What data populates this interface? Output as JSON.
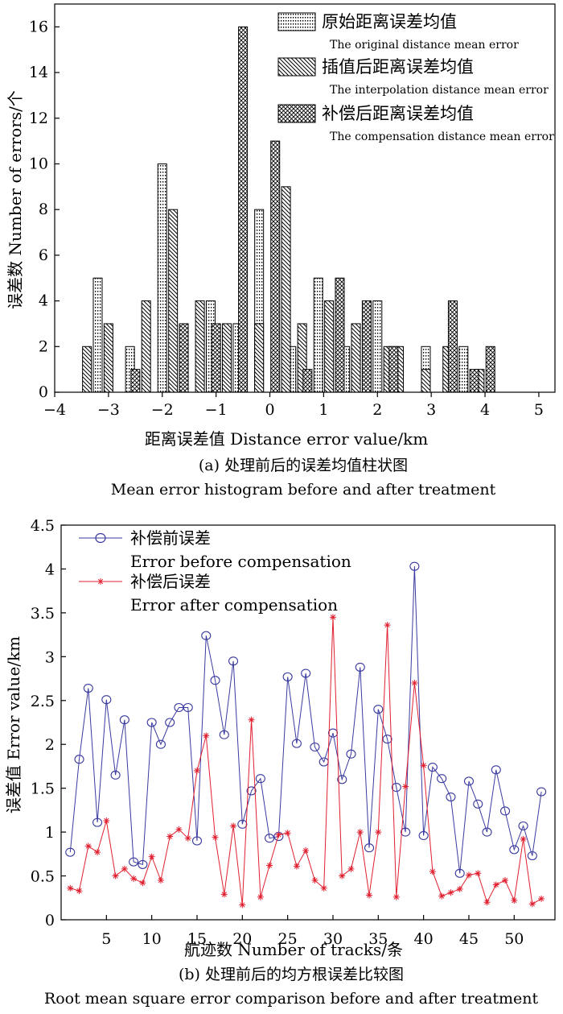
{
  "chart_data": [
    {
      "type": "bar",
      "ylabel": "误差数 Number of errors/个",
      "xlabel": "距离误差值 Distance error value/km",
      "caption_cn": "(a) 处理前后的误差均值柱状图",
      "caption_en": "Mean error histogram before and after treatment",
      "xlim": [
        -4,
        5.3
      ],
      "ylim": [
        0,
        17
      ],
      "xticks": [
        "-4",
        "-3",
        "-2",
        "-1",
        "0",
        "1",
        "2",
        "3",
        "4",
        "5"
      ],
      "yticks": [
        "0",
        "2",
        "4",
        "6",
        "8",
        "10",
        "12",
        "14",
        "16"
      ],
      "legend_position": "top-right",
      "series": [
        {
          "name": "原始距离误差均值",
          "name_en": "The original distance mean error",
          "pattern": "dots",
          "points": [
            [
              -3.2,
              5
            ],
            [
              -2.6,
              2
            ],
            [
              -2.0,
              10
            ],
            [
              -1.1,
              4
            ],
            [
              -0.6,
              3
            ],
            [
              -0.2,
              8
            ],
            [
              0.4,
              2
            ],
            [
              0.9,
              5
            ],
            [
              1.4,
              2
            ],
            [
              2.0,
              4
            ],
            [
              2.9,
              2
            ],
            [
              3.6,
              2
            ]
          ]
        },
        {
          "name": "插值后距离误差均值",
          "name_en": "The interpolation distance mean error",
          "pattern": "hatch",
          "points": [
            [
              -3.4,
              2
            ],
            [
              -3.0,
              3
            ],
            [
              -2.3,
              4
            ],
            [
              -1.8,
              8
            ],
            [
              -1.3,
              4
            ],
            [
              -0.8,
              3
            ],
            [
              -0.2,
              3
            ],
            [
              0.3,
              9
            ],
            [
              0.6,
              3
            ],
            [
              1.1,
              4
            ],
            [
              1.6,
              3
            ],
            [
              2.2,
              2
            ],
            [
              2.4,
              2
            ],
            [
              2.9,
              1
            ],
            [
              3.3,
              2
            ],
            [
              3.9,
              1
            ]
          ]
        },
        {
          "name": "补偿后距离误差均值",
          "name_en": "The compensation distance mean error",
          "pattern": "crosshatch",
          "points": [
            [
              -2.5,
              1
            ],
            [
              -1.6,
              3
            ],
            [
              -1.0,
              3
            ],
            [
              -0.5,
              16
            ],
            [
              0.1,
              11
            ],
            [
              0.7,
              1
            ],
            [
              1.3,
              5
            ],
            [
              1.8,
              4
            ],
            [
              2.3,
              2
            ],
            [
              3.4,
              4
            ],
            [
              3.8,
              1
            ],
            [
              4.1,
              2
            ]
          ]
        }
      ]
    },
    {
      "type": "line",
      "ylabel": "误差值 Error value/km",
      "xlabel": "航迹数 Number of tracks/条",
      "caption_cn": "(b) 处理前后的均方根误差比较图",
      "caption_en": "Root mean square error comparison before and after treatment",
      "xlim": [
        0,
        54.5
      ],
      "ylim": [
        0,
        4.5
      ],
      "xticks": [
        "5",
        "10",
        "15",
        "20",
        "25",
        "30",
        "35",
        "40",
        "45",
        "50"
      ],
      "yticks": [
        "0",
        "0.5",
        "1",
        "1.5",
        "2",
        "2.5",
        "3",
        "3.5",
        "4",
        "4.5"
      ],
      "legend_position": "top-left",
      "series": [
        {
          "name": "补偿前误差",
          "name_en": "Error before compensation",
          "color": "#3a3aa0",
          "marker": "circle",
          "x": [
            1,
            2,
            3,
            4,
            5,
            6,
            7,
            8,
            9,
            10,
            11,
            12,
            13,
            14,
            15,
            16,
            17,
            18,
            19,
            20,
            21,
            22,
            23,
            24,
            25,
            26,
            27,
            28,
            29,
            30,
            31,
            32,
            33,
            34,
            35,
            36,
            37,
            38,
            39,
            40,
            41,
            42,
            43,
            44,
            45,
            46,
            47,
            48,
            49,
            50,
            51,
            52,
            53
          ],
          "y": [
            0.77,
            1.83,
            2.64,
            1.11,
            2.51,
            1.65,
            2.28,
            0.66,
            0.63,
            2.25,
            2.0,
            2.25,
            2.42,
            2.42,
            0.9,
            3.24,
            2.73,
            2.11,
            2.95,
            1.09,
            1.47,
            1.61,
            0.93,
            0.95,
            2.77,
            2.01,
            2.81,
            1.97,
            1.8,
            2.13,
            1.6,
            1.89,
            2.88,
            0.82,
            2.4,
            2.06,
            1.51,
            1.0,
            4.03,
            0.96,
            1.74,
            1.61,
            1.4,
            0.53,
            1.58,
            1.32,
            1.0,
            1.71,
            1.24,
            0.8,
            1.07,
            0.73,
            1.46
          ]
        },
        {
          "name": "补偿后误差",
          "name_en": "Error after compensation",
          "color": "#e02030",
          "marker": "star",
          "x": [
            1,
            2,
            3,
            4,
            5,
            6,
            7,
            8,
            9,
            10,
            11,
            12,
            13,
            14,
            15,
            16,
            17,
            18,
            19,
            20,
            21,
            22,
            23,
            24,
            25,
            26,
            27,
            28,
            29,
            30,
            31,
            32,
            33,
            34,
            35,
            36,
            37,
            38,
            39,
            40,
            41,
            42,
            43,
            44,
            45,
            46,
            47,
            48,
            49,
            50,
            51,
            52,
            53
          ],
          "y": [
            0.36,
            0.33,
            0.84,
            0.77,
            1.13,
            0.5,
            0.58,
            0.47,
            0.42,
            0.72,
            0.45,
            0.95,
            1.03,
            0.93,
            1.7,
            2.1,
            0.94,
            0.29,
            1.07,
            0.17,
            2.28,
            0.26,
            0.62,
            0.97,
            0.99,
            0.61,
            0.79,
            0.45,
            0.36,
            3.45,
            0.5,
            0.58,
            1.0,
            0.28,
            1.0,
            3.36,
            0.26,
            1.52,
            2.7,
            1.76,
            0.55,
            0.27,
            0.31,
            0.35,
            0.51,
            0.53,
            0.2,
            0.4,
            0.45,
            0.22,
            0.92,
            0.18,
            0.24
          ]
        }
      ]
    }
  ]
}
